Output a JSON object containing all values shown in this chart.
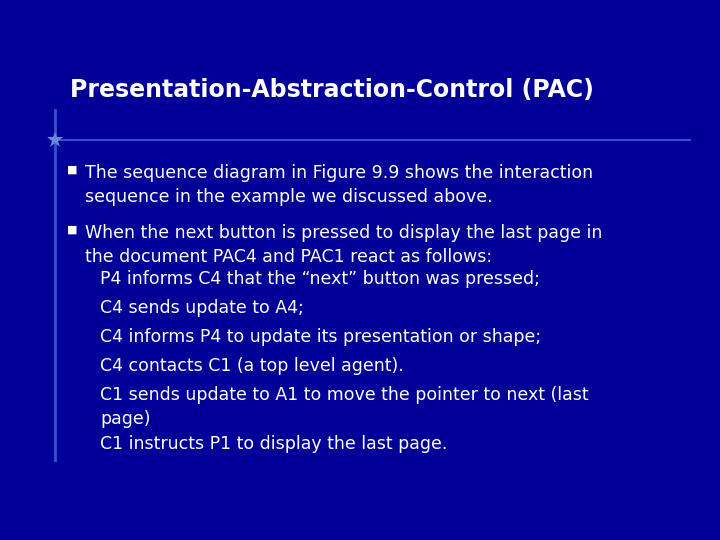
{
  "title": "Presentation-Abstraction-Control (PAC)",
  "background_color": "#000099",
  "title_color": "#FFFFFF",
  "title_fontsize": 17,
  "body_color": "#FFFFFF",
  "body_fontsize": 12.5,
  "bullet_color": "#FFFFFF",
  "bullet1": "The sequence diagram in Figure 9.9 shows the interaction\nsequence in the example we discussed above.",
  "bullet2": "When the next button is pressed to display the last page in\nthe document PAC4 and PAC1 react as follows:",
  "sub_bullets": [
    "P4 informs C4 that the “next” button was pressed;",
    "C4 sends update to A4;",
    "C4 informs P4 to update its presentation or shape;",
    "C4 contacts C1 (a top level agent).",
    "C1 sends update to A1 to move the pointer to next (last\npage)",
    "C1 instructs P1 to display the last page."
  ],
  "accent_line_color": "#3355CC",
  "accent_star_color": "#6688DD"
}
